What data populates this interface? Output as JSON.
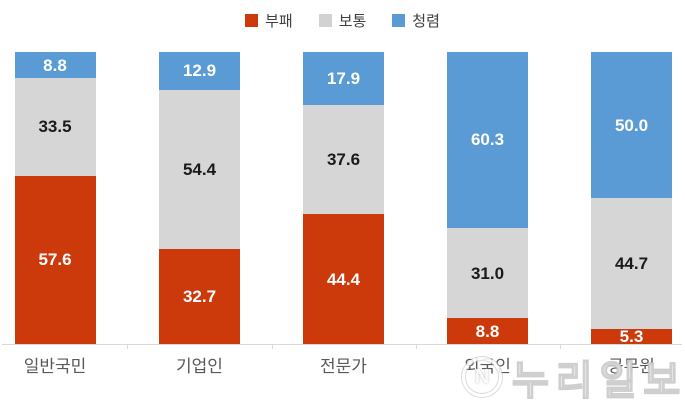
{
  "legend": {
    "items": [
      {
        "label": "부패",
        "color": "#cc3a0c"
      },
      {
        "label": "보통",
        "color": "#d2d2d2"
      },
      {
        "label": "청렴",
        "color": "#5b9bd5"
      }
    ]
  },
  "chart_data": {
    "type": "bar",
    "stacked": true,
    "orientation": "vertical",
    "unit": "percent",
    "value_range": [
      0,
      100
    ],
    "grid": false,
    "legend_position": "top",
    "categories": [
      "일반국민",
      "기업인",
      "전문가",
      "외국인",
      "공무원"
    ],
    "series": [
      {
        "name": "부패",
        "color": "#cc3a0c",
        "label_color": "#ffffff",
        "values": [
          57.6,
          32.7,
          44.4,
          8.8,
          5.3
        ]
      },
      {
        "name": "보통",
        "color": "#d6d6d6",
        "label_color": "#1a1a1a",
        "values": [
          33.5,
          54.4,
          37.6,
          31.0,
          44.7
        ]
      },
      {
        "name": "청렴",
        "color": "#5b9bd5",
        "label_color": "#ffffff",
        "values": [
          8.8,
          12.9,
          17.9,
          60.3,
          50.0
        ]
      }
    ]
  },
  "watermark": {
    "logo_letter": "N",
    "text": "누리일보"
  }
}
